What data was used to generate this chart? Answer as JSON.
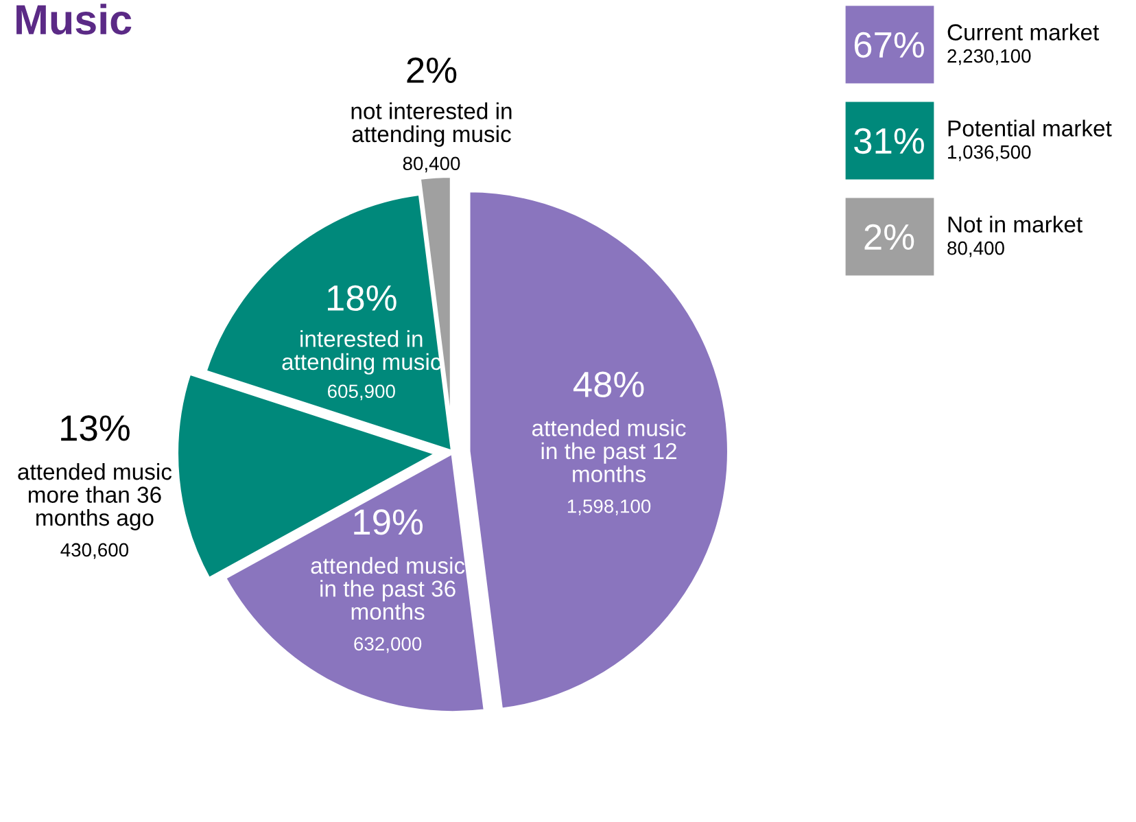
{
  "chart_data": [
    {
      "type": "pie",
      "title": "Music",
      "categories": [
        "attended music\nin the past 12\nmonths",
        "attended music\nin the past 36\nmonths",
        "attended music\nmore than 36\nmonths ago",
        "interested in\nattending music",
        "not interested in\nattending music"
      ],
      "values": [
        48,
        19,
        13,
        18,
        2
      ],
      "value_labels": [
        "48%",
        "19%",
        "13%",
        "18%",
        "2%"
      ],
      "annotations": [
        "1,598,100",
        "632,000",
        "430,600",
        "605,900",
        "80,400"
      ],
      "colors": [
        "#8a75be",
        "#8a75be",
        "#00897b",
        "#00897b",
        "#a0a0a0"
      ]
    },
    {
      "type": "other",
      "categories": [
        "Current market",
        "Potential market",
        "Not in market"
      ],
      "value_labels": [
        "67%",
        "31%",
        "2%"
      ],
      "annotations": [
        "2,230,100",
        "1,036,500",
        "80,400"
      ],
      "colors": [
        "#8a75be",
        "#00897b",
        "#a0a0a0"
      ]
    }
  ]
}
